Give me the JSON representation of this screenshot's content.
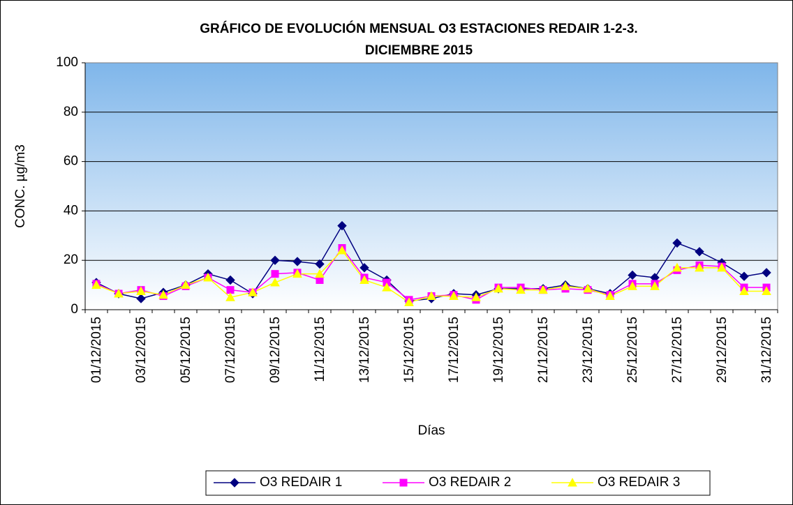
{
  "chart_data": {
    "type": "line",
    "title": [
      "GRÁFICO DE EVOLUCIÓN MENSUAL O3 ESTACIONES REDAIR 1-2-3.",
      "DICIEMBRE 2015"
    ],
    "y_label": "CONC. µg/m3",
    "x_label": "Días",
    "categories": [
      "01/12/2015",
      null,
      "03/12/2015",
      null,
      "05/12/2015",
      null,
      "07/12/2015",
      null,
      "09/12/2015",
      null,
      "11/12/2015",
      null,
      "13/12/2015",
      null,
      "15/12/2015",
      null,
      "17/12/2015",
      null,
      "19/12/2015",
      null,
      "21/12/2015",
      null,
      "23/12/2015",
      null,
      "25/12/2015",
      null,
      "27/12/2015",
      null,
      "29/12/2015",
      null,
      "31/12/2015"
    ],
    "series": [
      {
        "name": "O3 REDAIR 1",
        "color": "#000080",
        "marker": "diamond",
        "values": [
          11,
          6.5,
          4.5,
          7,
          10,
          14.5,
          12,
          6.5,
          20,
          19.5,
          18.5,
          34,
          17,
          12,
          3.5,
          4.5,
          6.5,
          6,
          8.5,
          8.5,
          8.5,
          10,
          8.5,
          6.5,
          14,
          13,
          27,
          23.5,
          19,
          13.5,
          15
        ]
      },
      {
        "name": "O3 REDAIR 2",
        "color": "#ff00ff",
        "marker": "square",
        "values": [
          10.5,
          6.5,
          8,
          5.5,
          9.5,
          13,
          8,
          7,
          14.5,
          15,
          12,
          25,
          13,
          11,
          4,
          5.5,
          6,
          4,
          9,
          9,
          8,
          8.5,
          8,
          6,
          10.5,
          10.5,
          16,
          18,
          17.5,
          9,
          9
        ]
      },
      {
        "name": "O3 REDAIR 3",
        "color": "#ffff00",
        "marker": "triangle",
        "values": [
          10,
          6.5,
          7.5,
          6,
          10,
          13,
          5,
          7,
          11,
          14.5,
          14.5,
          24,
          12,
          9,
          3,
          5.5,
          5.5,
          5,
          8.5,
          8,
          8,
          9.5,
          8.5,
          5.5,
          9.5,
          9.5,
          17,
          17,
          17,
          7.5,
          7.5
        ]
      }
    ],
    "ylim": [
      0,
      100
    ],
    "yticks": [
      0,
      20,
      40,
      60,
      80,
      100
    ],
    "grid": true,
    "legend": "bottom"
  }
}
